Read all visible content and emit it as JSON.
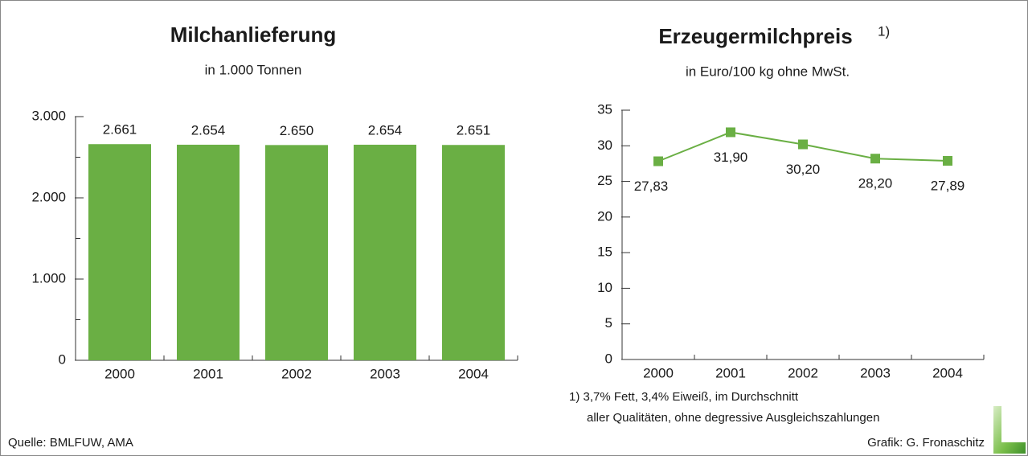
{
  "chart_data": [
    {
      "type": "bar",
      "title": "Milchanlieferung",
      "subtitle": "in 1.000 Tonnen",
      "categories": [
        "2000",
        "2001",
        "2002",
        "2003",
        "2004"
      ],
      "values": [
        2661,
        2654,
        2650,
        2654,
        2651
      ],
      "value_labels": [
        "2.661",
        "2.654",
        "2.650",
        "2.654",
        "2.651"
      ],
      "color": "#6aaf44",
      "ylim": [
        0,
        3000
      ],
      "yticks": [
        0,
        {
          "value": 1000,
          "label": "1.000"
        },
        {
          "value": 2000,
          "label": "2.000"
        },
        {
          "value": 3000,
          "label": "3.000"
        }
      ],
      "yticks_minor": [
        500,
        1500,
        2500
      ]
    },
    {
      "type": "line",
      "title": "Erzeugermilchpreis",
      "title_note": "1)",
      "subtitle": "in Euro/100 kg ohne MwSt.",
      "categories": [
        "2000",
        "2001",
        "2002",
        "2003",
        "2004"
      ],
      "values": [
        27.83,
        31.9,
        30.2,
        28.2,
        27.89
      ],
      "value_labels": [
        "27,83",
        "31,90",
        "30,20",
        "28,20",
        "27,89"
      ],
      "color": "#6aaf44",
      "ylim": [
        0,
        35
      ],
      "yticks": [
        0,
        5,
        10,
        15,
        20,
        25,
        30,
        35
      ],
      "footnote": [
        "1) 3,7% Fett, 3,4% Eiweiß, im Durchschnitt",
        "aller Qualitäten, ohne degressive Ausgleichszahlungen"
      ]
    }
  ],
  "source": "Quelle: BMLFUW, AMA",
  "credit": "Grafik: G. Fronaschitz"
}
